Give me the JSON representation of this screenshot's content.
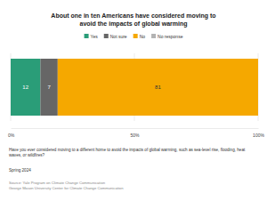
{
  "chart_data": {
    "type": "bar",
    "orientation": "horizontal",
    "stacked": true,
    "data_labels": true,
    "grid": true,
    "title": "About one in ten Americans have considered moving to avoid the impacts of global warming",
    "categories": [
      null
    ],
    "series": [
      {
        "name": "Yes",
        "color": "#2a9d78",
        "values": [
          12
        ]
      },
      {
        "name": "Not sure",
        "color": "#666666",
        "values": [
          7
        ]
      },
      {
        "name": "No",
        "color": "#f5a800",
        "values": [
          81
        ]
      },
      {
        "name": "No response",
        "color": "#b3b3b3",
        "values": [
          0
        ]
      }
    ],
    "xlim": [
      0,
      100
    ],
    "xticks": [
      {
        "value": 0,
        "label": "0%"
      },
      {
        "value": 50,
        "label": "50%"
      },
      {
        "value": 100,
        "label": "100%"
      }
    ],
    "question": "Have you ever considered moving to a different home to avoid the impacts of global warming, such as sea-level rise, flooding, heat waves, or wildfires?",
    "date": "Spring 2024",
    "source": [
      "Source: Yale Program on Climate Change Communication",
      "George Mason University Center for Climate Change Communication"
    ]
  }
}
